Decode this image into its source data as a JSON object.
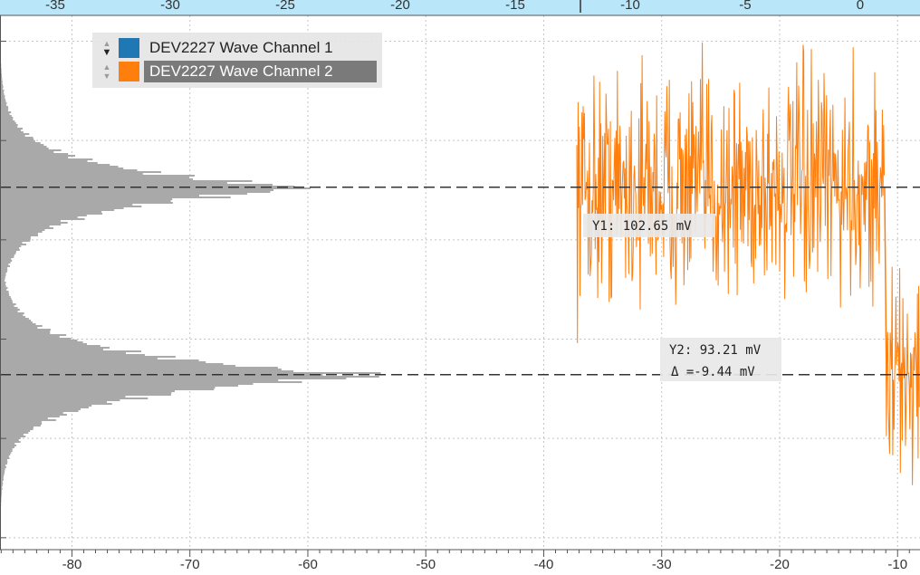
{
  "chart_data": {
    "type": "line",
    "top_axis": {
      "ticks": [
        -35,
        -30,
        -25,
        -20,
        -15,
        -10,
        -5,
        0
      ],
      "range": [
        -37.4,
        2.6
      ]
    },
    "bottom_axis": {
      "ticks": [
        -80,
        -70,
        -60,
        -50,
        -40,
        -30,
        -20,
        -10
      ],
      "range": [
        -86.1,
        -8.1
      ]
    },
    "y_range_mV": [
      84.4,
      111.3
    ],
    "legend": [
      {
        "label": "DEV2227 Wave Channel 1",
        "color": "#1f77b4",
        "selected": false
      },
      {
        "label": "DEV2227 Wave Channel 2",
        "color": "#ff7f0e",
        "selected": true
      }
    ],
    "series": [
      {
        "name": "DEV2227 Wave Channel 2",
        "color": "#ff7f0e",
        "segments": [
          {
            "x_start": -37.2,
            "x_end": -11.1,
            "level_mV": 102.65,
            "noise_mV": 2.8
          },
          {
            "x_start": -11.0,
            "x_end": -8.1,
            "level_mV": 93.21,
            "noise_mV": 2.6
          }
        ]
      }
    ],
    "histogram": {
      "color": "#a9a9a9",
      "peaks": [
        {
          "center_mV": 102.65,
          "peak_x": -56.0
        },
        {
          "center_mV": 93.21,
          "peak_x": -49.5
        }
      ],
      "base_x": -86.1
    },
    "cursors": [
      {
        "id": "Y1",
        "value_mV": 102.65,
        "label": "Y1: 102.65 mV"
      },
      {
        "id": "Y2",
        "value_mV": 93.21,
        "label": "Y2: 93.21 mV",
        "delta_label": "Δ =-9.44 mV"
      }
    ]
  }
}
